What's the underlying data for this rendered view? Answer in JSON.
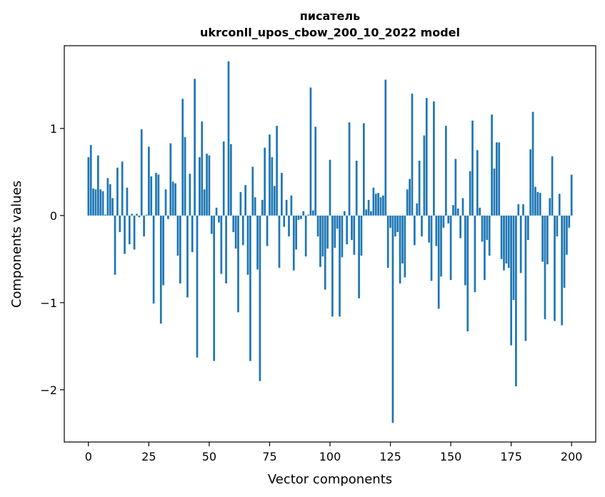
{
  "chart_data": {
    "type": "bar",
    "title_line1": "писатель",
    "title_line2": "ukrconll_upos_cbow_200_10_2022 model",
    "xlabel": "Vector components",
    "ylabel": "Components values",
    "xlim": [
      -10,
      210
    ],
    "ylim": [
      -2.6,
      1.95
    ],
    "xticks": [
      0,
      25,
      50,
      75,
      100,
      125,
      150,
      175,
      200
    ],
    "xtick_labels": [
      "0",
      "25",
      "50",
      "75",
      "100",
      "125",
      "150",
      "175",
      "200"
    ],
    "yticks": [
      -2,
      -1,
      0,
      1
    ],
    "ytick_labels": [
      "−2",
      "−1",
      "0",
      "1"
    ],
    "bar_color": "#1f77b4",
    "grid": false,
    "values": [
      0.67,
      0.81,
      0.31,
      0.3,
      0.69,
      0.3,
      0.28,
      0.01,
      0.43,
      0.36,
      0.2,
      -0.68,
      0.55,
      -0.19,
      0.62,
      -0.44,
      0.32,
      -0.33,
      0.02,
      -0.39,
      0.02,
      -0.02,
      0.99,
      -0.24,
      0.01,
      0.79,
      0.45,
      -1.01,
      0.49,
      0.47,
      -1.24,
      -0.8,
      0.3,
      -0.04,
      0.83,
      0.39,
      0.37,
      -0.46,
      -0.78,
      1.34,
      0.9,
      -0.94,
      0.48,
      -0.42,
      1.57,
      -1.63,
      0.67,
      1.08,
      0.3,
      0.71,
      0.69,
      -0.21,
      -1.67,
      0.09,
      -0.08,
      -0.67,
      0.85,
      -0.78,
      1.77,
      0.82,
      -0.19,
      -0.38,
      -1.11,
      0.27,
      -0.34,
      0.35,
      -0.68,
      -1.67,
      0.56,
      0.21,
      -0.62,
      -1.9,
      0.18,
      0.78,
      -0.35,
      0.93,
      0.67,
      0.34,
      1.03,
      -0.6,
      0.49,
      -0.13,
      0.18,
      -0.24,
      0.23,
      -0.63,
      -0.39,
      -0.05,
      -0.04,
      0.05,
      -0.47,
      0.01,
      1.47,
      0.06,
      1.02,
      -0.24,
      -0.59,
      -0.47,
      -0.85,
      -0.38,
      0.64,
      -1.16,
      -0.37,
      -0.15,
      -1.16,
      -0.48,
      0.05,
      -0.33,
      1.07,
      -0.28,
      -0.45,
      0.63,
      -0.95,
      -0.46,
      1.06,
      0.07,
      0.18,
      0.05,
      0.32,
      0.25,
      0.26,
      0.21,
      0.23,
      1.56,
      -0.6,
      -0.14,
      -2.38,
      -0.24,
      -0.19,
      -0.78,
      -0.55,
      -0.71,
      0.3,
      0.42,
      1.4,
      -0.34,
      0.14,
      0.63,
      -0.24,
      0.92,
      1.35,
      -0.31,
      -0.75,
      1.31,
      -0.35,
      -1.07,
      -0.7,
      -0.14,
      1.03,
      -0.09,
      -0.74,
      0.12,
      0.65,
      0.08,
      -0.26,
      0.2,
      -0.8,
      -1.33,
      0.51,
      1.09,
      -0.88,
      0.75,
      0.09,
      -0.3,
      -0.74,
      -0.28,
      -0.46,
      1.16,
      0.54,
      0.84,
      0.84,
      -0.5,
      -0.63,
      -0.55,
      -0.6,
      -1.49,
      -0.97,
      -1.96,
      0.13,
      -0.66,
      0.13,
      -1.44,
      -0.28,
      0.76,
      1.19,
      0.33,
      0.27,
      0.26,
      -0.53,
      -1.19,
      -0.56,
      0.2,
      0.68,
      -1.21,
      -0.24,
      0.25,
      -1.26,
      -0.83,
      -0.45,
      -0.14,
      0.47
    ]
  }
}
